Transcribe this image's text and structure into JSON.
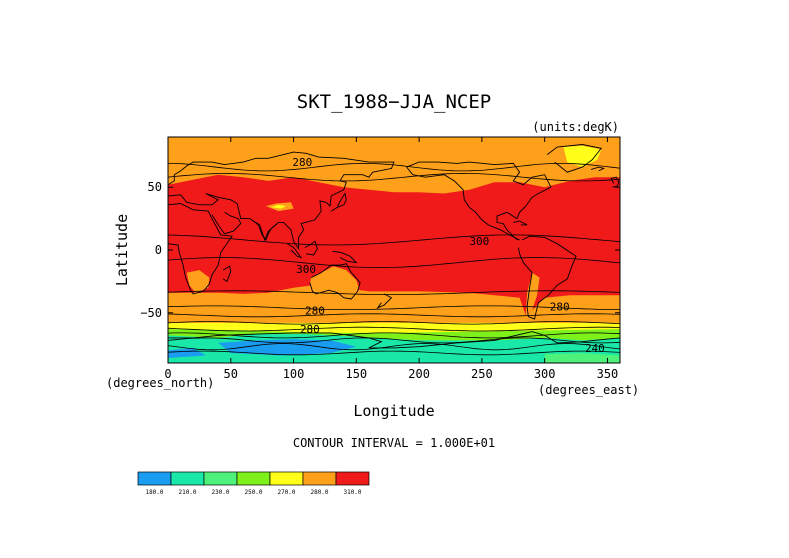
{
  "chart_data": {
    "type": "heatmap",
    "title": "SKT_1988−JJA_NCEP",
    "units_note": "(units:degK)",
    "xlabel": "Longitude",
    "ylabel": "Latitude",
    "x_units": "(degrees_east)",
    "y_units": "(degrees_north)",
    "xlim": [
      0,
      360
    ],
    "ylim": [
      -90,
      90
    ],
    "xticks": [
      "0",
      "50",
      "100",
      "150",
      "200",
      "250",
      "300",
      "350"
    ],
    "xtick_values": [
      0,
      50,
      100,
      150,
      200,
      250,
      300,
      350
    ],
    "yticks": [
      "50",
      "0",
      "−50"
    ],
    "ytick_values": [
      50,
      0,
      -50
    ],
    "contour_interval": "CONTOUR INTERVAL = 1.000E+01",
    "contour_labels": [
      {
        "text": "280",
        "lon": 107,
        "lat": 70
      },
      {
        "text": "300",
        "lon": 248,
        "lat": 7
      },
      {
        "text": "300",
        "lon": 110,
        "lat": -15
      },
      {
        "text": "280",
        "lon": 117,
        "lat": -48
      },
      {
        "text": "280",
        "lon": 113,
        "lat": -63
      },
      {
        "text": "280",
        "lon": 312,
        "lat": -45
      },
      {
        "text": "240",
        "lon": 340,
        "lat": -78
      }
    ],
    "colorbar": {
      "levels": [
        "180.0",
        "210.0",
        "230.0",
        "250.0",
        "270.0",
        "280.0",
        "310.0"
      ],
      "level_values": [
        180,
        210,
        230,
        250,
        270,
        280,
        310
      ],
      "colors": [
        "#1a9cf0",
        "#1ae8a8",
        "#4ef27a",
        "#7ef01a",
        "#ffff1a",
        "#ffa01a",
        "#f01a1a"
      ]
    },
    "field_colors": {
      "cold": "#1a9cf0",
      "cool": "#1ae8a8",
      "mild": "#4ef27a",
      "cool_green": "#7ef01a",
      "cold_land": "#ffff1a",
      "temperate": "#ffa01a",
      "warm": "#f01a1a"
    }
  }
}
